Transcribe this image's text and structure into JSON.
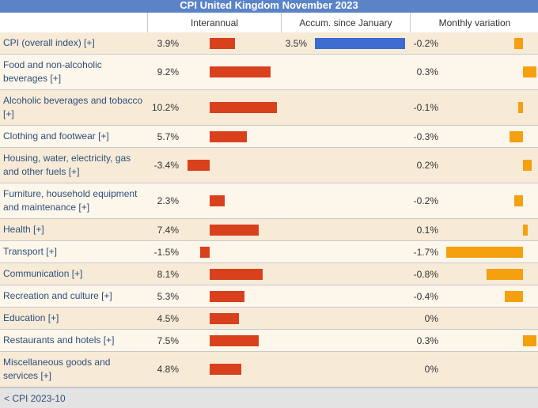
{
  "title": "CPI United Kingdom November 2023",
  "headers": {
    "interannual": "Interannual",
    "accum": "Accum. since January",
    "monthly": "Monthly variation"
  },
  "footer": {
    "prev_link": "< CPI 2023-10"
  },
  "colors": {
    "interannual_bar": "#d9401c",
    "accum_bar": "#3b6cd0",
    "monthly_bar": "#f5a00f",
    "title_bg": "#5b83c8"
  },
  "chart_data": {
    "type": "table",
    "title": "CPI United Kingdom November 2023",
    "columns": [
      "Interannual",
      "Accum. since January",
      "Monthly variation"
    ],
    "rows": [
      {
        "label": "CPI (overall index) [+]",
        "interannual": 3.9,
        "interannual_text": "3.9%",
        "accum": 3.5,
        "accum_text": "3.5%",
        "monthly": -0.2,
        "monthly_text": "-0.2%"
      },
      {
        "label": "Food and non-alcoholic beverages [+]",
        "interannual": 9.2,
        "interannual_text": "9.2%",
        "accum": null,
        "accum_text": "",
        "monthly": 0.3,
        "monthly_text": "0.3%"
      },
      {
        "label": "Alcoholic beverages and tobacco [+]",
        "interannual": 10.2,
        "interannual_text": "10.2%",
        "accum": null,
        "accum_text": "",
        "monthly": -0.1,
        "monthly_text": "-0.1%"
      },
      {
        "label": "Clothing and footwear [+]",
        "interannual": 5.7,
        "interannual_text": "5.7%",
        "accum": null,
        "accum_text": "",
        "monthly": -0.3,
        "monthly_text": "-0.3%"
      },
      {
        "label": "Housing, water, electricity, gas and other fuels [+]",
        "interannual": -3.4,
        "interannual_text": "-3.4%",
        "accum": null,
        "accum_text": "",
        "monthly": 0.2,
        "monthly_text": "0.2%"
      },
      {
        "label": "Furniture, household equipment and maintenance [+]",
        "interannual": 2.3,
        "interannual_text": "2.3%",
        "accum": null,
        "accum_text": "",
        "monthly": -0.2,
        "monthly_text": "-0.2%"
      },
      {
        "label": "Health [+]",
        "interannual": 7.4,
        "interannual_text": "7.4%",
        "accum": null,
        "accum_text": "",
        "monthly": 0.1,
        "monthly_text": "0.1%"
      },
      {
        "label": "Transport [+]",
        "interannual": -1.5,
        "interannual_text": "-1.5%",
        "accum": null,
        "accum_text": "",
        "monthly": -1.7,
        "monthly_text": "-1.7%"
      },
      {
        "label": "Communication [+]",
        "interannual": 8.1,
        "interannual_text": "8.1%",
        "accum": null,
        "accum_text": "",
        "monthly": -0.8,
        "monthly_text": "-0.8%"
      },
      {
        "label": "Recreation and culture [+]",
        "interannual": 5.3,
        "interannual_text": "5.3%",
        "accum": null,
        "accum_text": "",
        "monthly": -0.4,
        "monthly_text": "-0.4%"
      },
      {
        "label": "Education [+]",
        "interannual": 4.5,
        "interannual_text": "4.5%",
        "accum": null,
        "accum_text": "",
        "monthly": 0.0,
        "monthly_text": "0%"
      },
      {
        "label": "Restaurants and hotels [+]",
        "interannual": 7.5,
        "interannual_text": "7.5%",
        "accum": null,
        "accum_text": "",
        "monthly": 0.3,
        "monthly_text": "0.3%"
      },
      {
        "label": "Miscellaneous goods and services [+]",
        "interannual": 4.8,
        "interannual_text": "4.8%",
        "accum": null,
        "accum_text": "",
        "monthly": 0.0,
        "monthly_text": "0%"
      }
    ]
  }
}
